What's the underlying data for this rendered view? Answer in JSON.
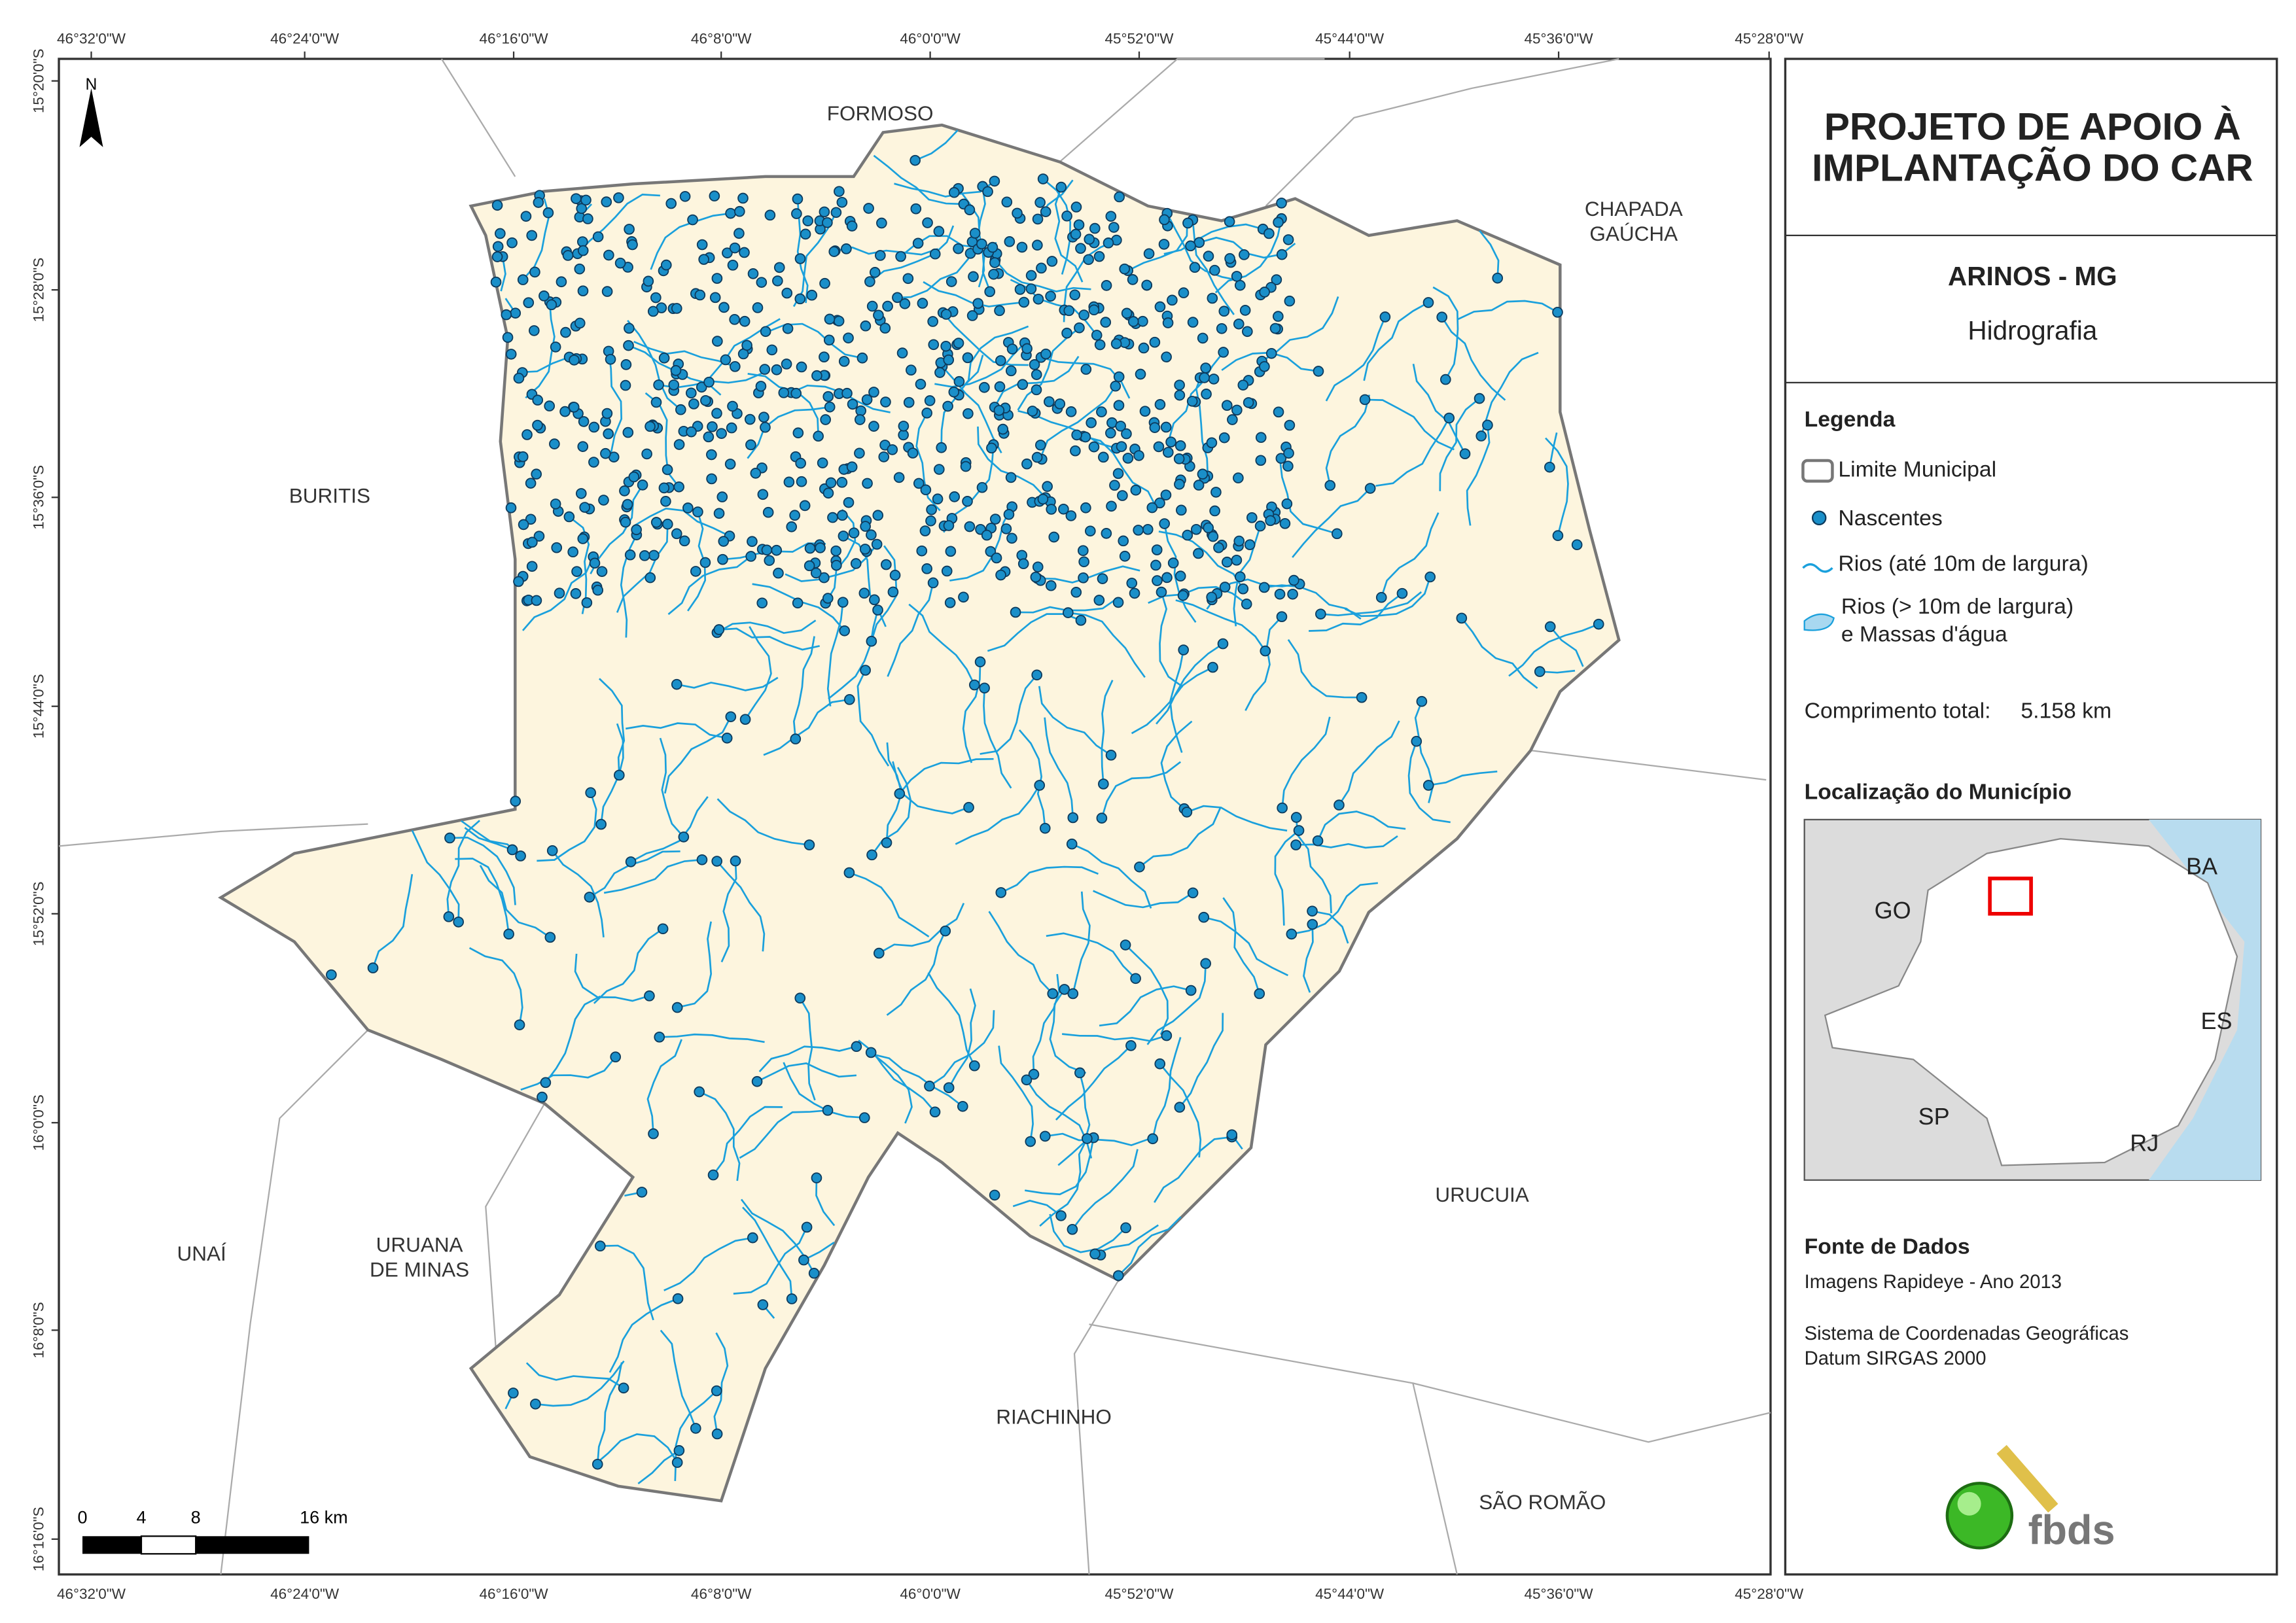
{
  "map": {
    "lon_labels": [
      "46°32'0\"W",
      "46°24'0\"W",
      "46°16'0\"W",
      "46°8'0\"W",
      "46°0'0\"W",
      "45°52'0\"W",
      "45°44'0\"W",
      "45°36'0\"W",
      "45°28'0\"W"
    ],
    "lat_labels": [
      "15°20'0\"S",
      "15°28'0\"S",
      "15°36'0\"S",
      "15°44'0\"S",
      "15°52'0\"S",
      "16°0'0\"S",
      "16°8'0\"S",
      "16°16'0\"S"
    ],
    "places": [
      "FORMOSO",
      "CHAPADA",
      "GAÚCHA",
      "BURITIS",
      "URUCUIA",
      "UNAÍ",
      "URUANA",
      "DE MINAS",
      "RIACHINHO",
      "SÃO ROMÃO"
    ],
    "north": "N",
    "scale_labels": [
      "0",
      "4",
      "8",
      "16 km"
    ]
  },
  "panel": {
    "title": [
      "PROJETO DE APOIO À",
      "IMPLANTAÇÃO DO CAR"
    ],
    "municipality": "ARINOS - MG",
    "theme": "Hidrografia",
    "legend_title": "Legenda",
    "legend_items": [
      "Limite Municipal",
      "Nascentes",
      "Rios (até 10m de largura)",
      "Rios (> 10m de largura)",
      "e Massas d'água"
    ],
    "total_label": "Comprimento total:",
    "total_value": "5.158 km",
    "location_title": "Localização do Município",
    "states": [
      "BA",
      "GO",
      "ES",
      "SP",
      "RJ"
    ],
    "sources_title": "Fonte de Dados",
    "sources": [
      "Imagens Rapideye - Ano 2013",
      "Sistema de Coordenadas Geográficas",
      "Datum SIRGAS 2000"
    ],
    "logo": "fbds"
  }
}
